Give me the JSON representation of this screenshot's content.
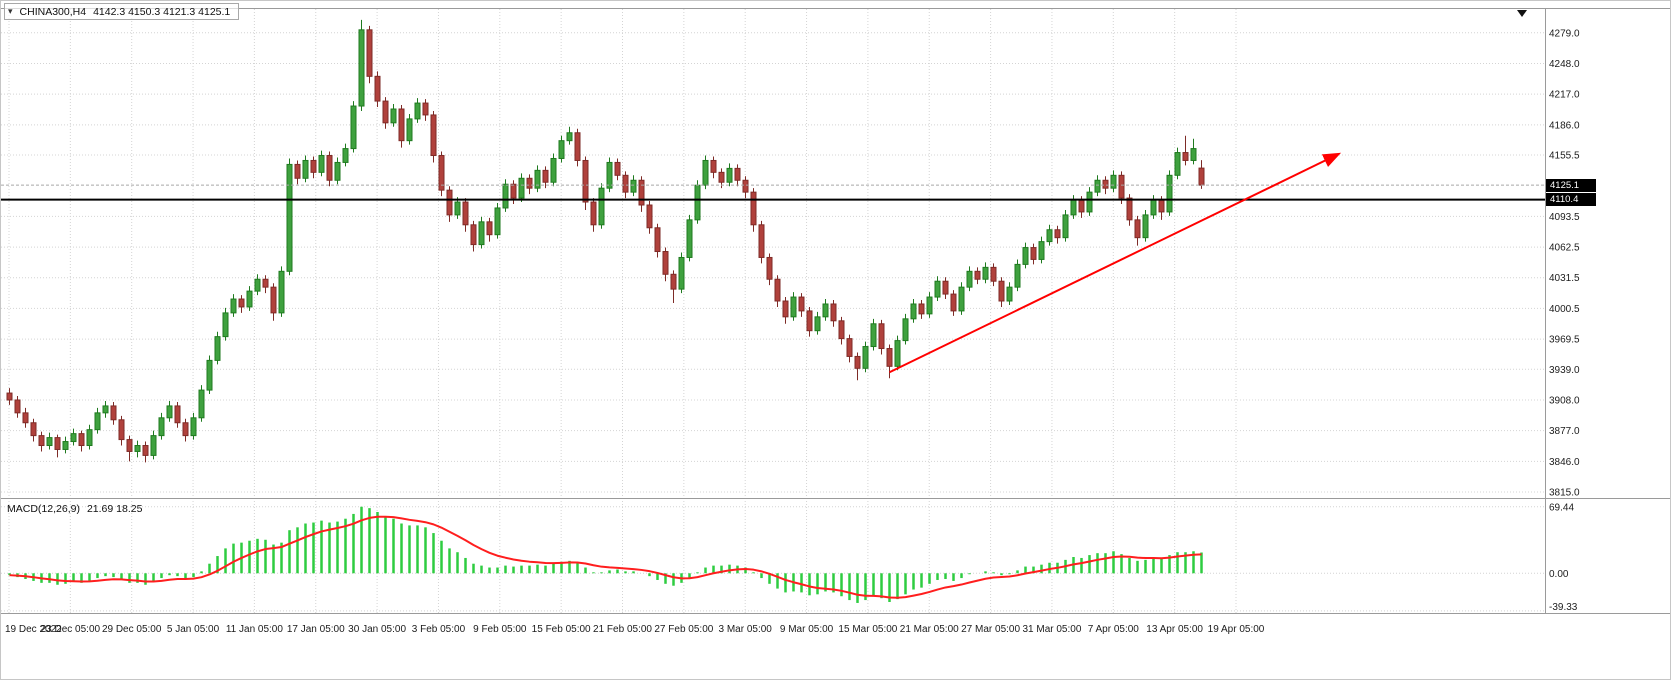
{
  "header": {
    "symbol": "CHINA300,H4",
    "ohlc": "4142.3 4150.3 4121.3 4125.1"
  },
  "indicator": {
    "title": "MACD(12,26,9)",
    "values": "21.69 18.25"
  },
  "price_axis": {
    "current_price": 4125.1,
    "current_price_label": "4125.1",
    "hline_price_label": "4110.4"
  },
  "objects": {
    "horizontal_line": {
      "price": 4110.4,
      "color": "#000000",
      "width": 2
    },
    "trend_arrow": {
      "from_index": 110,
      "from_price": 3936,
      "to_index": 166,
      "to_price": 4156,
      "color": "#ff0000",
      "width": 2
    }
  },
  "colors": {
    "background": "#ffffff",
    "grid": "#d4d4d4",
    "axis_text": "#1b1b1b",
    "separator": "#9a9a9a",
    "candle_up": "#3fa13f",
    "candle_up_border": "#1f7a1f",
    "candle_down": "#b0413c",
    "candle_down_border": "#7e2b27",
    "macd_bar": "#2ecc40",
    "macd_signal": "#ff1e1e",
    "badge_bg": "#000000",
    "badge_text": "#ffffff"
  },
  "chart_data": [
    {
      "type": "candlestick",
      "title": "CHINA300,H4",
      "timeframe": "H4",
      "ylim": [
        3812,
        4300
      ],
      "y_gridlines": [
        4279,
        4248,
        4217,
        4186,
        4155.5,
        4093.5,
        4062.5,
        4031.5,
        4000.5,
        3969.5,
        3939,
        3908,
        3877,
        3846,
        3815
      ],
      "x_ticks": [
        "19 Dec 2022",
        "23 Dec 05:00",
        "29 Dec 05:00",
        "5 Jan 05:00",
        "11 Jan 05:00",
        "17 Jan 05:00",
        "30 Jan 05:00",
        "3 Feb 05:00",
        "9 Feb 05:00",
        "15 Feb 05:00",
        "21 Feb 05:00",
        "27 Feb 05:00",
        "3 Mar 05:00",
        "9 Mar 05:00",
        "15 Mar 05:00",
        "21 Mar 05:00",
        "27 Mar 05:00",
        "31 Mar 05:00",
        "7 Apr 05:00",
        "13 Apr 05:00",
        "19 Apr 05:00"
      ],
      "ohlc": [
        [
          3915,
          3920,
          3903,
          3908
        ],
        [
          3908,
          3912,
          3890,
          3895
        ],
        [
          3895,
          3900,
          3880,
          3885
        ],
        [
          3885,
          3889,
          3866,
          3872
        ],
        [
          3872,
          3876,
          3856,
          3862
        ],
        [
          3862,
          3875,
          3858,
          3870
        ],
        [
          3870,
          3873,
          3850,
          3858
        ],
        [
          3858,
          3871,
          3854,
          3866
        ],
        [
          3866,
          3879,
          3862,
          3874
        ],
        [
          3874,
          3877,
          3856,
          3862
        ],
        [
          3862,
          3883,
          3858,
          3878
        ],
        [
          3878,
          3900,
          3874,
          3895
        ],
        [
          3895,
          3907,
          3890,
          3902
        ],
        [
          3902,
          3906,
          3883,
          3888
        ],
        [
          3888,
          3892,
          3862,
          3868
        ],
        [
          3868,
          3872,
          3846,
          3856
        ],
        [
          3856,
          3867,
          3850,
          3862
        ],
        [
          3862,
          3866,
          3845,
          3852
        ],
        [
          3852,
          3877,
          3848,
          3872
        ],
        [
          3872,
          3895,
          3868,
          3890
        ],
        [
          3890,
          3907,
          3886,
          3902
        ],
        [
          3902,
          3906,
          3880,
          3885
        ],
        [
          3885,
          3889,
          3866,
          3872
        ],
        [
          3872,
          3895,
          3868,
          3890
        ],
        [
          3890,
          3923,
          3886,
          3918
        ],
        [
          3918,
          3953,
          3914,
          3948
        ],
        [
          3948,
          3977,
          3944,
          3972
        ],
        [
          3972,
          4001,
          3968,
          3996
        ],
        [
          3996,
          4015,
          3992,
          4010
        ],
        [
          4010,
          4014,
          3996,
          4002
        ],
        [
          4002,
          4023,
          3998,
          4018
        ],
        [
          4018,
          4035,
          4014,
          4030
        ],
        [
          4030,
          4034,
          4016,
          4022
        ],
        [
          4022,
          4026,
          3988,
          3996
        ],
        [
          3996,
          4043,
          3992,
          4038
        ],
        [
          4038,
          4152,
          4034,
          4146
        ],
        [
          4146,
          4150,
          4126,
          4132
        ],
        [
          4132,
          4155,
          4128,
          4150
        ],
        [
          4150,
          4154,
          4132,
          4138
        ],
        [
          4138,
          4160,
          4134,
          4155
        ],
        [
          4155,
          4159,
          4124,
          4130
        ],
        [
          4130,
          4153,
          4126,
          4148
        ],
        [
          4148,
          4167,
          4144,
          4162
        ],
        [
          4162,
          4210,
          4158,
          4205
        ],
        [
          4205,
          4292,
          4200,
          4282
        ],
        [
          4282,
          4286,
          4228,
          4235
        ],
        [
          4235,
          4240,
          4204,
          4210
        ],
        [
          4210,
          4214,
          4182,
          4188
        ],
        [
          4188,
          4207,
          4184,
          4202
        ],
        [
          4202,
          4206,
          4163,
          4170
        ],
        [
          4170,
          4197,
          4166,
          4192
        ],
        [
          4192,
          4213,
          4188,
          4208
        ],
        [
          4208,
          4212,
          4190,
          4196
        ],
        [
          4196,
          4200,
          4148,
          4155
        ],
        [
          4155,
          4159,
          4114,
          4120
        ],
        [
          4120,
          4124,
          4088,
          4095
        ],
        [
          4095,
          4113,
          4091,
          4108
        ],
        [
          4108,
          4112,
          4078,
          4085
        ],
        [
          4085,
          4089,
          4058,
          4065
        ],
        [
          4065,
          4093,
          4061,
          4088
        ],
        [
          4088,
          4092,
          4068,
          4075
        ],
        [
          4075,
          4107,
          4071,
          4102
        ],
        [
          4102,
          4131,
          4098,
          4126
        ],
        [
          4126,
          4130,
          4106,
          4112
        ],
        [
          4112,
          4137,
          4108,
          4132
        ],
        [
          4132,
          4136,
          4116,
          4122
        ],
        [
          4122,
          4145,
          4118,
          4140
        ],
        [
          4140,
          4144,
          4122,
          4128
        ],
        [
          4128,
          4157,
          4124,
          4152
        ],
        [
          4152,
          4175,
          4148,
          4170
        ],
        [
          4170,
          4184,
          4166,
          4178
        ],
        [
          4178,
          4182,
          4144,
          4150
        ],
        [
          4150,
          4154,
          4100,
          4108
        ],
        [
          4108,
          4112,
          4078,
          4085
        ],
        [
          4085,
          4127,
          4081,
          4122
        ],
        [
          4122,
          4153,
          4118,
          4148
        ],
        [
          4148,
          4152,
          4130,
          4135
        ],
        [
          4135,
          4139,
          4112,
          4118
        ],
        [
          4118,
          4135,
          4114,
          4130
        ],
        [
          4130,
          4134,
          4098,
          4105
        ],
        [
          4105,
          4109,
          4076,
          4082
        ],
        [
          4082,
          4086,
          4052,
          4058
        ],
        [
          4058,
          4062,
          4028,
          4035
        ],
        [
          4035,
          4039,
          4006,
          4020
        ],
        [
          4020,
          4057,
          4016,
          4052
        ],
        [
          4052,
          4095,
          4048,
          4090
        ],
        [
          4090,
          4130,
          4086,
          4125
        ],
        [
          4125,
          4155,
          4121,
          4150
        ],
        [
          4150,
          4154,
          4132,
          4138
        ],
        [
          4138,
          4142,
          4122,
          4128
        ],
        [
          4128,
          4147,
          4124,
          4142
        ],
        [
          4142,
          4146,
          4124,
          4130
        ],
        [
          4130,
          4134,
          4112,
          4118
        ],
        [
          4118,
          4122,
          4078,
          4085
        ],
        [
          4085,
          4089,
          4046,
          4052
        ],
        [
          4052,
          4056,
          4024,
          4030
        ],
        [
          4030,
          4034,
          4002,
          4008
        ],
        [
          4008,
          4012,
          3985,
          3992
        ],
        [
          3992,
          4017,
          3988,
          4012
        ],
        [
          4012,
          4016,
          3992,
          3998
        ],
        [
          3998,
          4002,
          3972,
          3978
        ],
        [
          3978,
          3997,
          3974,
          3992
        ],
        [
          3992,
          4010,
          3988,
          4005
        ],
        [
          4005,
          4009,
          3982,
          3988
        ],
        [
          3988,
          3992,
          3964,
          3970
        ],
        [
          3970,
          3974,
          3946,
          3952
        ],
        [
          3952,
          3956,
          3928,
          3940
        ],
        [
          3940,
          3967,
          3936,
          3962
        ],
        [
          3962,
          3990,
          3958,
          3985
        ],
        [
          3985,
          3989,
          3954,
          3960
        ],
        [
          3960,
          3964,
          3930,
          3942
        ],
        [
          3942,
          3973,
          3938,
          3968
        ],
        [
          3968,
          3995,
          3964,
          3990
        ],
        [
          3990,
          4010,
          3986,
          4005
        ],
        [
          4005,
          4009,
          3990,
          3995
        ],
        [
          3995,
          4017,
          3991,
          4012
        ],
        [
          4012,
          4033,
          4008,
          4028
        ],
        [
          4028,
          4032,
          4010,
          4015
        ],
        [
          4015,
          4019,
          3993,
          3998
        ],
        [
          3998,
          4027,
          3994,
          4022
        ],
        [
          4022,
          4043,
          4018,
          4038
        ],
        [
          4038,
          4042,
          4025,
          4030
        ],
        [
          4030,
          4047,
          4026,
          4042
        ],
        [
          4042,
          4046,
          4023,
          4028
        ],
        [
          4028,
          4032,
          4002,
          4008
        ],
        [
          4008,
          4027,
          4004,
          4022
        ],
        [
          4022,
          4050,
          4018,
          4045
        ],
        [
          4045,
          4067,
          4041,
          4062
        ],
        [
          4062,
          4066,
          4045,
          4050
        ],
        [
          4050,
          4073,
          4046,
          4068
        ],
        [
          4068,
          4085,
          4064,
          4080
        ],
        [
          4080,
          4084,
          4066,
          4072
        ],
        [
          4072,
          4100,
          4068,
          4095
        ],
        [
          4095,
          4115,
          4091,
          4110
        ],
        [
          4110,
          4114,
          4092,
          4098
        ],
        [
          4098,
          4123,
          4094,
          4118
        ],
        [
          4118,
          4135,
          4114,
          4130
        ],
        [
          4130,
          4134,
          4116,
          4122
        ],
        [
          4122,
          4140,
          4118,
          4135
        ],
        [
          4135,
          4139,
          4106,
          4112
        ],
        [
          4112,
          4116,
          4084,
          4090
        ],
        [
          4090,
          4094,
          4064,
          4072
        ],
        [
          4072,
          4100,
          4068,
          4095
        ],
        [
          4095,
          4115,
          4091,
          4110
        ],
        [
          4110,
          4114,
          4090,
          4098
        ],
        [
          4098,
          4140,
          4094,
          4135
        ],
        [
          4135,
          4163,
          4131,
          4158
        ],
        [
          4158,
          4175,
          4145,
          4150
        ],
        [
          4150,
          4172,
          4146,
          4162
        ],
        [
          4142.3,
          4150.3,
          4121.3,
          4125.1
        ]
      ]
    },
    {
      "type": "bar",
      "name": "MACD(12,26,9)",
      "ylim": [
        -41.5,
        75.5
      ],
      "yticks": [
        69.44,
        0,
        -39.33
      ],
      "signal_period": 9,
      "values": [
        -2,
        -4,
        -6,
        -8,
        -10,
        -10,
        -12,
        -11,
        -9,
        -10,
        -8,
        -5,
        -3,
        -4,
        -7,
        -10,
        -10,
        -12,
        -9,
        -5,
        -2,
        -3,
        -6,
        -4,
        2,
        10,
        18,
        26,
        31,
        32,
        34,
        36,
        35,
        30,
        32,
        45,
        48,
        52,
        53,
        55,
        53,
        54,
        57,
        62,
        69.44,
        68,
        64,
        59,
        57,
        52,
        50,
        50,
        48,
        42,
        34,
        26,
        22,
        16,
        10,
        8,
        6,
        6,
        8,
        7,
        8,
        8,
        9,
        8,
        10,
        12,
        13,
        11,
        6,
        1,
        1,
        3,
        4,
        2,
        2,
        0,
        -3,
        -7,
        -11,
        -13,
        -10,
        -5,
        1,
        6,
        8,
        8,
        9,
        8,
        6,
        1,
        -5,
        -11,
        -16,
        -20,
        -19,
        -20,
        -23,
        -22,
        -19,
        -20,
        -24,
        -28,
        -31,
        -28,
        -24,
        -26,
        -30,
        -27,
        -22,
        -17,
        -15,
        -11,
        -7,
        -6,
        -8,
        -5,
        -1,
        0,
        2,
        1,
        -2,
        -1,
        3,
        7,
        7,
        9,
        11,
        11,
        14,
        17,
        16,
        19,
        21,
        21,
        23,
        20,
        16,
        13,
        14,
        16,
        15,
        19,
        22,
        22,
        23,
        21.69
      ]
    }
  ]
}
